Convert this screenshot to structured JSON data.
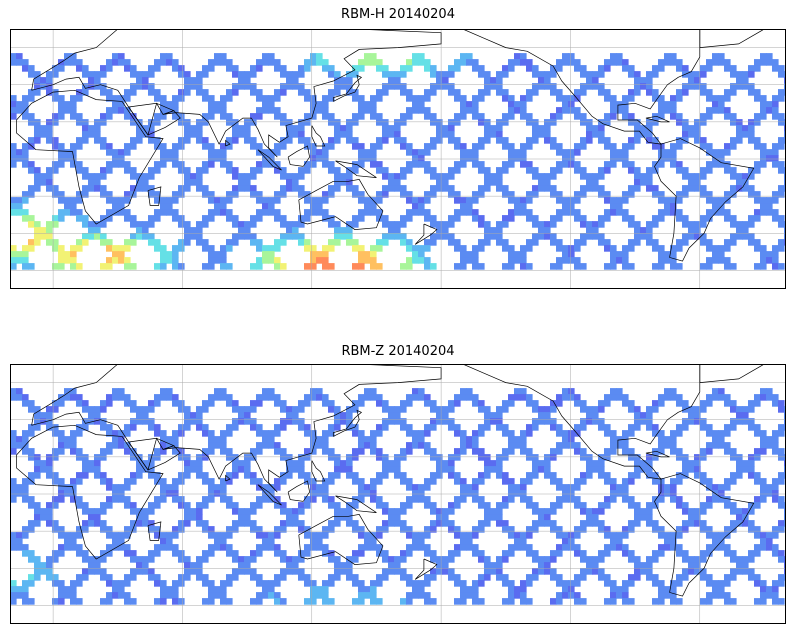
{
  "panels": [
    {
      "title": "RBM-H 20140204",
      "palette": [
        "#5a6cf0",
        "#5b8bf2",
        "#5cb6f2",
        "#65e0e6",
        "#a8f59a",
        "#f2f274",
        "#ffc060",
        "#ff8a5a"
      ],
      "hot_zones": [
        {
          "lon": 130,
          "lat": -55,
          "level": 7,
          "spread_lon": 40,
          "spread_lat": 15
        },
        {
          "lon": 20,
          "lat": -50,
          "level": 6,
          "spread_lon": 35,
          "spread_lat": 12
        },
        {
          "lon": 150,
          "lat": 55,
          "level": 4,
          "spread_lon": 40,
          "spread_lat": 8
        },
        {
          "lon": -20,
          "lat": -40,
          "level": 6,
          "spread_lon": 30,
          "spread_lat": 15
        }
      ]
    },
    {
      "title": "RBM-Z 20140204",
      "palette": [
        "#5a6cf0",
        "#5b8bf2",
        "#5cb6f2",
        "#65e0e6",
        "#a8f59a",
        "#f2f274",
        "#ffc060",
        "#ff8a5a"
      ],
      "hot_zones": [
        {
          "lon": -30,
          "lat": -40,
          "level": 4,
          "spread_lon": 25,
          "spread_lat": 12
        },
        {
          "lon": 130,
          "lat": -55,
          "level": 2,
          "spread_lon": 40,
          "spread_lat": 10
        }
      ]
    }
  ],
  "map": {
    "lon_range": [
      -20,
      340
    ],
    "lat_range": [
      -70,
      70
    ],
    "swath_lat_range": [
      -57,
      57
    ],
    "gridlines": true,
    "coastline_color": "#000000"
  }
}
